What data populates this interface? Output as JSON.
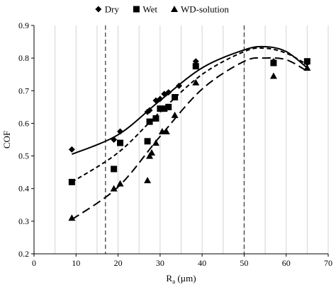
{
  "chart_data": {
    "type": "scatter",
    "title": "",
    "xlabel": "R",
    "xlabel_sub": "a",
    "xlabel_unit": " (µm)",
    "ylabel": "COF",
    "xlim": [
      0,
      70
    ],
    "ylim": [
      0.2,
      0.9
    ],
    "x_ticks": [
      "0",
      "10",
      "20",
      "30",
      "40",
      "50",
      "60",
      "70"
    ],
    "y_ticks": [
      "0.2",
      "0.3",
      "0.4",
      "0.5",
      "0.6",
      "0.7",
      "0.8",
      "0.9"
    ],
    "grid": "vertical",
    "legend_position": "top",
    "vertical_reference_lines": [
      17,
      50
    ],
    "series": [
      {
        "name": "Dry",
        "marker": "diamond",
        "line_style": "solid",
        "points": [
          [
            9,
            0.52
          ],
          [
            19,
            0.55
          ],
          [
            20.5,
            0.575
          ],
          [
            27,
            0.635
          ],
          [
            27.5,
            0.64
          ],
          [
            29,
            0.67
          ],
          [
            30,
            0.675
          ],
          [
            31,
            0.69
          ],
          [
            32,
            0.695
          ],
          [
            34.5,
            0.715
          ],
          [
            38.5,
            0.79
          ],
          [
            57,
            0.79
          ],
          [
            65,
            0.785
          ]
        ],
        "fit": [
          [
            9,
            0.505
          ],
          [
            20,
            0.565
          ],
          [
            30,
            0.67
          ],
          [
            40,
            0.77
          ],
          [
            50,
            0.825
          ],
          [
            55,
            0.835
          ],
          [
            60,
            0.82
          ],
          [
            65,
            0.77
          ]
        ]
      },
      {
        "name": "Wet",
        "marker": "square",
        "line_style": "short-dash",
        "points": [
          [
            9,
            0.42
          ],
          [
            19,
            0.46
          ],
          [
            20.5,
            0.54
          ],
          [
            27,
            0.545
          ],
          [
            27.5,
            0.605
          ],
          [
            29,
            0.615
          ],
          [
            30,
            0.645
          ],
          [
            31,
            0.645
          ],
          [
            32,
            0.65
          ],
          [
            33.5,
            0.68
          ],
          [
            38.5,
            0.775
          ],
          [
            57,
            0.785
          ],
          [
            65,
            0.79
          ]
        ],
        "fit": [
          [
            9,
            0.42
          ],
          [
            20,
            0.51
          ],
          [
            30,
            0.635
          ],
          [
            40,
            0.75
          ],
          [
            50,
            0.82
          ],
          [
            55,
            0.83
          ],
          [
            60,
            0.815
          ],
          [
            65,
            0.78
          ]
        ]
      },
      {
        "name": "WD-solution",
        "marker": "triangle",
        "line_style": "long-dash",
        "points": [
          [
            9,
            0.31
          ],
          [
            19,
            0.4
          ],
          [
            20.5,
            0.415
          ],
          [
            27,
            0.425
          ],
          [
            27.5,
            0.5
          ],
          [
            28,
            0.51
          ],
          [
            29,
            0.54
          ],
          [
            30.5,
            0.575
          ],
          [
            31.5,
            0.575
          ],
          [
            33.5,
            0.625
          ],
          [
            38.5,
            0.725
          ],
          [
            57,
            0.745
          ],
          [
            65,
            0.77
          ]
        ],
        "fit": [
          [
            9,
            0.305
          ],
          [
            20,
            0.405
          ],
          [
            30,
            0.56
          ],
          [
            40,
            0.705
          ],
          [
            50,
            0.79
          ],
          [
            55,
            0.8
          ],
          [
            60,
            0.795
          ],
          [
            65,
            0.76
          ]
        ]
      }
    ]
  }
}
